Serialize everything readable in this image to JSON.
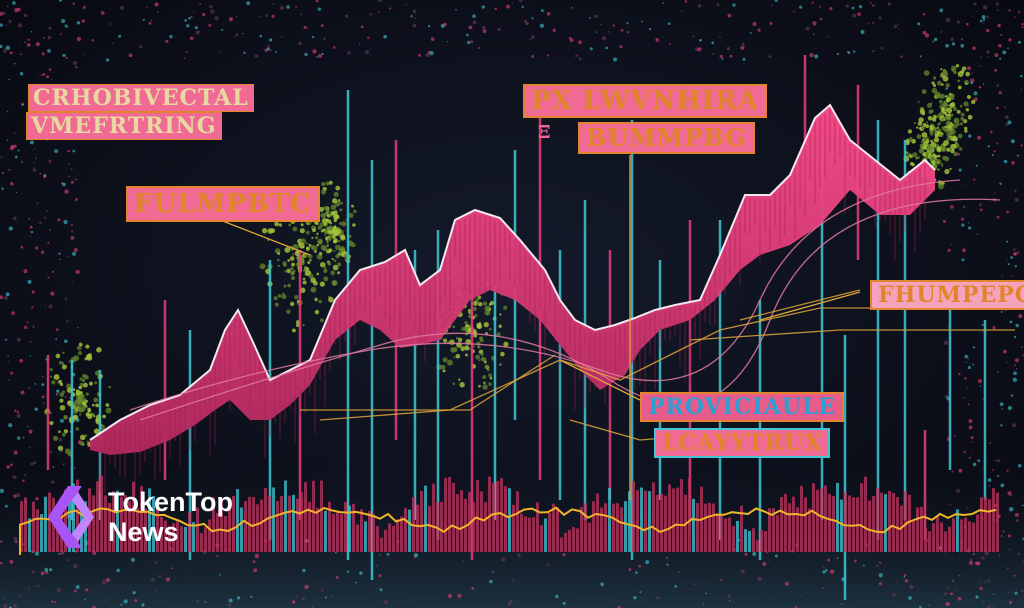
{
  "labels": {
    "top_left_1": "CRHOBIVECTAL",
    "top_left_2": "VMEFRTRING",
    "top_center_1": "PX LWVNHIRA",
    "top_center_2": "BUMMPBG",
    "top_center_mark": "Ξ",
    "left_mid": "FULMPBTC",
    "right_mid": "FHUMPEPC",
    "center_low_1": "PROVICIAULE",
    "center_low_2": "LCAYYTRUX"
  },
  "brand": {
    "line1": "TokenTop",
    "line2": "News",
    "icon": "tokentop-logo-icon"
  },
  "colors": {
    "background": "#0f1220",
    "area_pink": "#e83d7c",
    "cyan_spike": "#3fc7d6",
    "lime_foliage": "#a7c73a",
    "yellow_line": "#f0b429",
    "logo_purple": "#a855f7",
    "label_pink_bg": "#f06a93",
    "label_orange": "#e0852b"
  }
}
